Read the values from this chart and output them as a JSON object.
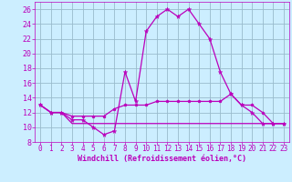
{
  "bg_color": "#cceeff",
  "grid_color": "#99bbcc",
  "line_color": "#bb00bb",
  "xlabel": "Windchill (Refroidissement éolien,°C)",
  "xlabel_fontsize": 6,
  "tick_fontsize": 5.5,
  "ylim": [
    8,
    27
  ],
  "xlim": [
    -0.5,
    23.5
  ],
  "yticks": [
    8,
    10,
    12,
    14,
    16,
    18,
    20,
    22,
    24,
    26
  ],
  "xticks": [
    0,
    1,
    2,
    3,
    4,
    5,
    6,
    7,
    8,
    9,
    10,
    11,
    12,
    13,
    14,
    15,
    16,
    17,
    18,
    19,
    20,
    21,
    22,
    23
  ],
  "line1_x": [
    0,
    1,
    2,
    3,
    4,
    5,
    6,
    7,
    8,
    9,
    10,
    11,
    12,
    13,
    14,
    15,
    16,
    17,
    18,
    19,
    20,
    21,
    22,
    23
  ],
  "line1_y": [
    13,
    12,
    12,
    11,
    11,
    10,
    9,
    9.5,
    17.5,
    13.5,
    23,
    25,
    26,
    25,
    26,
    24,
    22,
    17.5,
    14.5,
    13,
    12,
    10.5,
    10.5,
    10.5
  ],
  "line2_x": [
    0,
    1,
    2,
    3,
    4,
    5,
    6,
    7,
    8,
    9,
    10,
    11,
    12,
    13,
    14,
    15,
    16,
    17,
    18,
    19,
    20,
    21,
    22,
    23
  ],
  "line2_y": [
    13,
    12,
    12,
    11.5,
    11.5,
    11.5,
    11.5,
    12.5,
    13,
    13,
    13,
    13.5,
    13.5,
    13.5,
    13.5,
    13.5,
    13.5,
    13.5,
    14.5,
    13,
    13,
    12,
    10.5,
    10.5
  ],
  "line3_x": [
    0,
    1,
    2,
    3,
    4,
    5,
    6,
    7,
    8,
    9,
    10,
    11,
    12,
    13,
    14,
    15,
    16,
    17,
    18,
    19,
    20,
    21,
    22,
    23
  ],
  "line3_y": [
    13,
    12,
    12,
    10.5,
    10.5,
    10.5,
    10.5,
    10.5,
    10.5,
    10.5,
    10.5,
    10.5,
    10.5,
    10.5,
    10.5,
    10.5,
    10.5,
    10.5,
    10.5,
    10.5,
    10.5,
    10.5,
    10.5,
    10.5
  ]
}
